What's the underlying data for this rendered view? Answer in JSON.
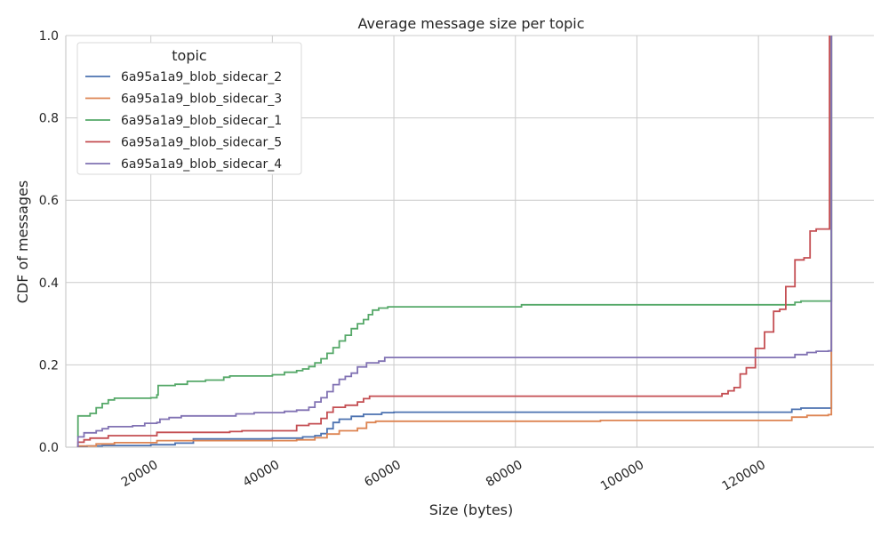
{
  "chart_data": {
    "type": "line",
    "title": "Average message size per topic",
    "xlabel": "Size (bytes)",
    "ylabel": "CDF of messages",
    "xlim": [
      6000,
      139000
    ],
    "ylim": [
      0,
      1
    ],
    "x_ticks": [
      20000,
      40000,
      60000,
      80000,
      100000,
      120000
    ],
    "x_tick_labels": [
      "20000",
      "40000",
      "60000",
      "80000",
      "100000",
      "120000"
    ],
    "y_ticks": [
      0,
      0.2,
      0.4,
      0.6,
      0.8,
      1.0
    ],
    "y_tick_labels": [
      "0.0",
      "0.2",
      "0.4",
      "0.6",
      "0.8",
      "1.0"
    ],
    "grid": true,
    "legend": {
      "title": "topic",
      "placement": "top-left"
    },
    "series": [
      {
        "name": "6a95a1a9_blob_sidecar_2",
        "color": "#4c72b0",
        "points": [
          [
            8000,
            0
          ],
          [
            8000,
            0.002
          ],
          [
            9500,
            0.003
          ],
          [
            12000,
            0.004
          ],
          [
            20000,
            0.006
          ],
          [
            24000,
            0.01
          ],
          [
            27000,
            0.02
          ],
          [
            40000,
            0.022
          ],
          [
            45000,
            0.025
          ],
          [
            47000,
            0.028
          ],
          [
            48000,
            0.033
          ],
          [
            49000,
            0.045
          ],
          [
            50000,
            0.06
          ],
          [
            51000,
            0.068
          ],
          [
            53000,
            0.075
          ],
          [
            55000,
            0.08
          ],
          [
            58000,
            0.084
          ],
          [
            60000,
            0.085
          ],
          [
            125000,
            0.085
          ],
          [
            125500,
            0.092
          ],
          [
            127000,
            0.095
          ],
          [
            132000,
            0.097
          ],
          [
            132000,
            0.1
          ],
          [
            132000,
            1
          ]
        ]
      },
      {
        "name": "6a95a1a9_blob_sidecar_3",
        "color": "#dd8452",
        "points": [
          [
            8000,
            0
          ],
          [
            8000,
            0.003
          ],
          [
            11000,
            0.008
          ],
          [
            14000,
            0.011
          ],
          [
            21000,
            0.016
          ],
          [
            44000,
            0.018
          ],
          [
            47000,
            0.023
          ],
          [
            49000,
            0.032
          ],
          [
            51000,
            0.04
          ],
          [
            54000,
            0.046
          ],
          [
            55500,
            0.06
          ],
          [
            57000,
            0.063
          ],
          [
            93000,
            0.063
          ],
          [
            94000,
            0.065
          ],
          [
            125000,
            0.065
          ],
          [
            125500,
            0.073
          ],
          [
            128000,
            0.077
          ],
          [
            131500,
            0.079
          ],
          [
            132000,
            0.09
          ],
          [
            132000,
            1
          ]
        ]
      },
      {
        "name": "6a95a1a9_blob_sidecar_1",
        "color": "#55a868",
        "points": [
          [
            8000,
            0.025
          ],
          [
            8000,
            0.076
          ],
          [
            9000,
            0.076
          ],
          [
            10000,
            0.082
          ],
          [
            11000,
            0.096
          ],
          [
            12000,
            0.106
          ],
          [
            13000,
            0.115
          ],
          [
            14000,
            0.119
          ],
          [
            20000,
            0.12
          ],
          [
            21000,
            0.127
          ],
          [
            21200,
            0.15
          ],
          [
            24000,
            0.153
          ],
          [
            26000,
            0.16
          ],
          [
            29000,
            0.163
          ],
          [
            32000,
            0.17
          ],
          [
            33000,
            0.173
          ],
          [
            40000,
            0.176
          ],
          [
            42000,
            0.182
          ],
          [
            44000,
            0.186
          ],
          [
            45000,
            0.19
          ],
          [
            46000,
            0.196
          ],
          [
            47000,
            0.205
          ],
          [
            48000,
            0.215
          ],
          [
            49000,
            0.228
          ],
          [
            50000,
            0.242
          ],
          [
            51000,
            0.258
          ],
          [
            52000,
            0.272
          ],
          [
            53000,
            0.288
          ],
          [
            54000,
            0.3
          ],
          [
            55000,
            0.31
          ],
          [
            55800,
            0.322
          ],
          [
            56500,
            0.333
          ],
          [
            57500,
            0.338
          ],
          [
            59000,
            0.341
          ],
          [
            80000,
            0.341
          ],
          [
            81000,
            0.346
          ],
          [
            125000,
            0.346
          ],
          [
            126000,
            0.352
          ],
          [
            127000,
            0.355
          ],
          [
            132000,
            0.355
          ],
          [
            132000,
            1
          ]
        ]
      },
      {
        "name": "6a95a1a9_blob_sidecar_5",
        "color": "#c44e52",
        "points": [
          [
            8000,
            0
          ],
          [
            8000,
            0.012
          ],
          [
            9000,
            0.018
          ],
          [
            10000,
            0.022
          ],
          [
            13000,
            0.028
          ],
          [
            21000,
            0.036
          ],
          [
            33000,
            0.038
          ],
          [
            35000,
            0.04
          ],
          [
            44000,
            0.053
          ],
          [
            46000,
            0.057
          ],
          [
            48000,
            0.07
          ],
          [
            49000,
            0.085
          ],
          [
            50000,
            0.097
          ],
          [
            52000,
            0.102
          ],
          [
            54000,
            0.11
          ],
          [
            55000,
            0.118
          ],
          [
            56000,
            0.124
          ],
          [
            113000,
            0.124
          ],
          [
            114000,
            0.13
          ],
          [
            115000,
            0.137
          ],
          [
            116000,
            0.145
          ],
          [
            117000,
            0.178
          ],
          [
            118000,
            0.193
          ],
          [
            119500,
            0.24
          ],
          [
            121000,
            0.28
          ],
          [
            122500,
            0.33
          ],
          [
            123500,
            0.335
          ],
          [
            124500,
            0.39
          ],
          [
            126000,
            0.455
          ],
          [
            127500,
            0.46
          ],
          [
            128500,
            0.525
          ],
          [
            129500,
            0.53
          ],
          [
            131500,
            0.53
          ],
          [
            131700,
            1
          ]
        ]
      },
      {
        "name": "6a95a1a9_blob_sidecar_4",
        "color": "#8172b3",
        "points": [
          [
            8000,
            0
          ],
          [
            8000,
            0.025
          ],
          [
            9000,
            0.035
          ],
          [
            11000,
            0.04
          ],
          [
            12000,
            0.045
          ],
          [
            13000,
            0.05
          ],
          [
            17000,
            0.052
          ],
          [
            19000,
            0.058
          ],
          [
            21000,
            0.06
          ],
          [
            21500,
            0.068
          ],
          [
            23000,
            0.072
          ],
          [
            25000,
            0.076
          ],
          [
            34000,
            0.081
          ],
          [
            37000,
            0.084
          ],
          [
            42000,
            0.087
          ],
          [
            44000,
            0.09
          ],
          [
            46000,
            0.097
          ],
          [
            47000,
            0.11
          ],
          [
            48000,
            0.12
          ],
          [
            49000,
            0.135
          ],
          [
            50000,
            0.152
          ],
          [
            51000,
            0.165
          ],
          [
            52000,
            0.172
          ],
          [
            53000,
            0.18
          ],
          [
            54000,
            0.195
          ],
          [
            55500,
            0.205
          ],
          [
            57500,
            0.209
          ],
          [
            58500,
            0.218
          ],
          [
            125000,
            0.218
          ],
          [
            126000,
            0.225
          ],
          [
            128000,
            0.23
          ],
          [
            129500,
            0.233
          ],
          [
            131500,
            0.234
          ],
          [
            132000,
            1
          ]
        ]
      }
    ]
  }
}
